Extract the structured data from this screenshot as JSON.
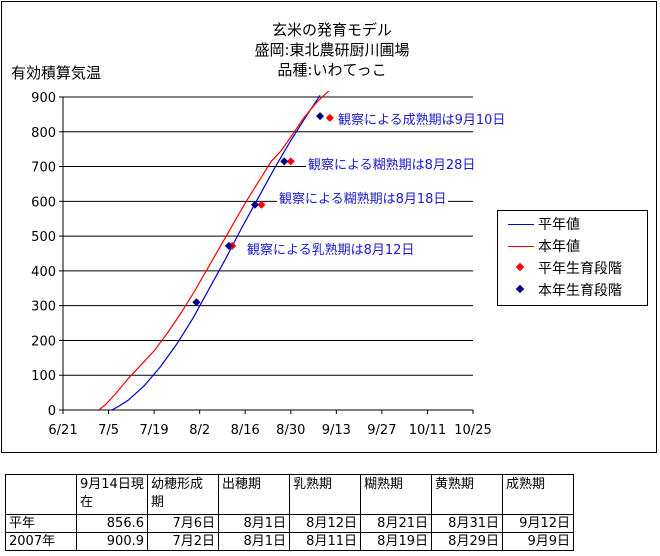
{
  "chart_data": {
    "type": "line",
    "title": [
      "玄米の発育モデル",
      "盛岡:東北農研厨川圃場",
      "品種:いわてっこ"
    ],
    "ylabel": "有効積算気温",
    "xlabel": "",
    "ylim": [
      0,
      900
    ],
    "yticks": [
      "0",
      "100",
      "200",
      "300",
      "400",
      "500",
      "600",
      "700",
      "800",
      "900"
    ],
    "xlim_days": [
      0,
      126
    ],
    "xtick_labels": [
      "6/21",
      "7/5",
      "7/19",
      "8/2",
      "8/16",
      "8/30",
      "9/13",
      "9/27",
      "10/11",
      "10/25"
    ],
    "grid": "horizontal",
    "series": [
      {
        "name": "平年値",
        "color": "#0000cc",
        "points": [
          [
            15,
            0
          ],
          [
            17,
            10
          ],
          [
            20,
            28
          ],
          [
            25,
            70
          ],
          [
            30,
            125
          ],
          [
            35,
            190
          ],
          [
            40,
            265
          ],
          [
            45,
            350
          ],
          [
            50,
            435
          ],
          [
            55,
            525
          ],
          [
            60,
            610
          ],
          [
            65,
            695
          ],
          [
            70,
            775
          ],
          [
            75,
            848
          ],
          [
            79,
            905
          ]
        ]
      },
      {
        "name": "本年値",
        "color": "#ff0000",
        "points": [
          [
            11,
            0
          ],
          [
            13,
            15
          ],
          [
            16,
            45
          ],
          [
            20,
            90
          ],
          [
            24,
            130
          ],
          [
            28,
            170
          ],
          [
            32,
            220
          ],
          [
            36,
            275
          ],
          [
            40,
            335
          ],
          [
            44,
            400
          ],
          [
            48,
            465
          ],
          [
            52,
            530
          ],
          [
            56,
            595
          ],
          [
            60,
            655
          ],
          [
            64,
            715
          ],
          [
            67,
            745
          ],
          [
            70,
            785
          ],
          [
            74,
            840
          ],
          [
            78,
            885
          ],
          [
            82,
            920
          ]
        ]
      }
    ],
    "markers": [
      {
        "name": "平年生育段階",
        "color": "#ff0000",
        "points": [
          [
            41,
            310
          ],
          [
            52,
            472
          ],
          [
            61,
            590
          ],
          [
            70,
            715
          ],
          [
            82,
            840
          ]
        ]
      },
      {
        "name": "本年生育段階",
        "color": "#000080",
        "points": [
          [
            41,
            310
          ],
          [
            51,
            472
          ],
          [
            59,
            590
          ],
          [
            68,
            715
          ],
          [
            79,
            845
          ]
        ]
      }
    ],
    "annotations": [
      {
        "text": "観察による成熟期は9月10日",
        "x": 82,
        "y": 840
      },
      {
        "text": "観察による糊熟期は8月28日",
        "x": 70,
        "y": 715
      },
      {
        "text": "観察による糊熟期は8月18日",
        "x": 61,
        "y": 600
      },
      {
        "text": "観察による乳熟期は8月12日",
        "x": 52,
        "y": 465
      }
    ],
    "legend_position": "right"
  },
  "table": {
    "headers": [
      "",
      "9月14日現在",
      "幼穂形成期",
      "出穂期",
      "乳熟期",
      "糊熟期",
      "黄熟期",
      "成熟期"
    ],
    "rows": [
      [
        "平年",
        "856.6",
        "7月6日",
        "8月1日",
        "8月12日",
        "8月21日",
        "8月31日",
        "9月12日"
      ],
      [
        "2007年",
        "900.9",
        "7月2日",
        "8月1日",
        "8月11日",
        "8月19日",
        "8月29日",
        "9月9日"
      ]
    ]
  }
}
